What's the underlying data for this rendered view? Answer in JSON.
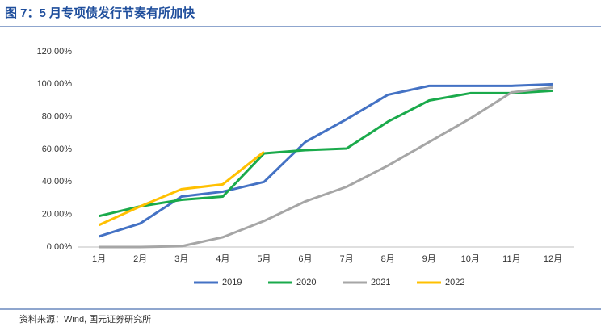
{
  "chart_data": {
    "type": "line",
    "title": "图 7：5 月专项债发行节奏有所加快",
    "source": "资料来源：Wind, 国元证券研究所",
    "categories": [
      "1月",
      "2月",
      "3月",
      "4月",
      "5月",
      "6月",
      "7月",
      "8月",
      "9月",
      "10月",
      "11月",
      "12月"
    ],
    "series": [
      {
        "name": "2019",
        "color": "#4472c4",
        "values": [
          6.5,
          14.5,
          31,
          34,
          40,
          64.5,
          78.5,
          93.5,
          99,
          99,
          99,
          100
        ]
      },
      {
        "name": "2020",
        "color": "#1aaa4b",
        "values": [
          19,
          25,
          29,
          31,
          57.5,
          59.5,
          60.5,
          77,
          90,
          94.5,
          94.5,
          96
        ]
      },
      {
        "name": "2021",
        "color": "#a6a6a6",
        "values": [
          0,
          0,
          0.5,
          6,
          16,
          28,
          37,
          50,
          64.5,
          79,
          95,
          98
        ]
      },
      {
        "name": "2022",
        "color": "#ffc000",
        "values": [
          13.5,
          25,
          35.5,
          38.5,
          58.5,
          null,
          null,
          null,
          null,
          null,
          null,
          null
        ]
      }
    ],
    "ylim": [
      0,
      120
    ],
    "yticks": [
      {
        "value": 0,
        "label": "0.00%"
      },
      {
        "value": 20,
        "label": "20.00%"
      },
      {
        "value": 40,
        "label": "40.00%"
      },
      {
        "value": 60,
        "label": "60.00%"
      },
      {
        "value": 80,
        "label": "80.00%"
      },
      {
        "value": 100,
        "label": "100.00%"
      },
      {
        "value": 120,
        "label": "120.00%"
      }
    ],
    "grid": false,
    "legend": "bottom"
  }
}
